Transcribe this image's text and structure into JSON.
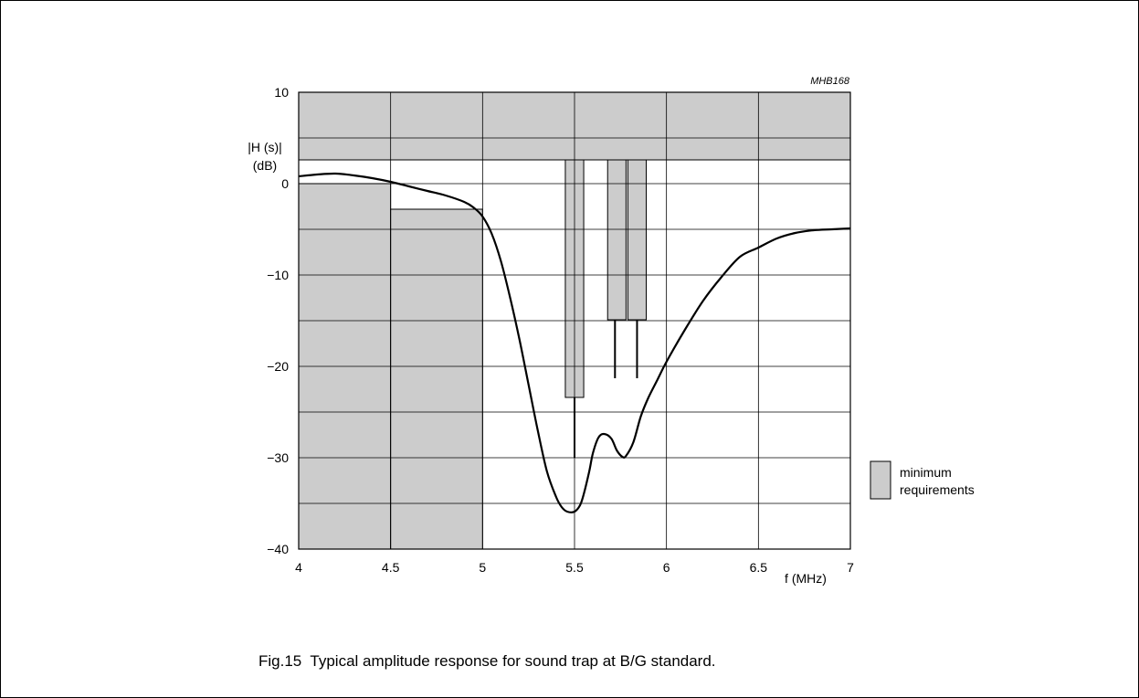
{
  "figure": {
    "reference_code": "MHB168",
    "caption": "Fig.15  Typical amplitude response for sound trap at B/G standard."
  },
  "chart_data": {
    "type": "line",
    "title": "",
    "xlabel": "f (MHz)",
    "ylabel_line1": "|H (s)|",
    "ylabel_line2": "(dB)",
    "xlim": [
      4,
      7
    ],
    "ylim": [
      -40,
      10
    ],
    "xticks": [
      4,
      4.5,
      5,
      5.5,
      6,
      6.5,
      7
    ],
    "xtick_labels": [
      "4",
      "4.5",
      "5",
      "5.5",
      "6",
      "6.5",
      "7"
    ],
    "yticks": [
      10,
      0,
      -10,
      -20,
      -30,
      -40
    ],
    "ytick_labels": [
      "10",
      "0",
      "−10",
      "−20",
      "−30",
      "−40"
    ],
    "grid": true,
    "series": [
      {
        "x": [
          4.0,
          4.1,
          4.2,
          4.3,
          4.4,
          4.5,
          4.6,
          4.7,
          4.8,
          4.9,
          4.95,
          5.0,
          5.05,
          5.1,
          5.15,
          5.2,
          5.25,
          5.3,
          5.35,
          5.4,
          5.43,
          5.46,
          5.5,
          5.53,
          5.55,
          5.58,
          5.6,
          5.63,
          5.66,
          5.7,
          5.73,
          5.76,
          5.78,
          5.82,
          5.86,
          5.9,
          5.95,
          6.0,
          6.1,
          6.2,
          6.3,
          6.4,
          6.5,
          6.6,
          6.7,
          6.8,
          6.9,
          7.0
        ],
        "y": [
          0.8,
          1.0,
          1.1,
          0.9,
          0.6,
          0.2,
          -0.3,
          -0.8,
          -1.3,
          -2.0,
          -2.6,
          -3.6,
          -5.5,
          -8.5,
          -12.5,
          -17.0,
          -22.0,
          -27.0,
          -31.5,
          -34.3,
          -35.4,
          -35.9,
          -35.9,
          -35.2,
          -34.0,
          -31.5,
          -29.5,
          -27.8,
          -27.4,
          -27.9,
          -29.2,
          -29.9,
          -29.8,
          -28.3,
          -25.5,
          -23.5,
          -21.5,
          -19.5,
          -16.0,
          -12.8,
          -10.2,
          -8.0,
          -7.0,
          -6.0,
          -5.4,
          -5.1,
          -5.0,
          -4.9
        ]
      }
    ],
    "shaded_regions": [
      {
        "x0": 4.0,
        "x1": 7.0,
        "y0": 2.6,
        "y1": 10
      },
      {
        "x0": 4.0,
        "x1": 4.5,
        "y0": -40,
        "y1": 0
      },
      {
        "x0": 4.5,
        "x1": 5.0,
        "y0": -40,
        "y1": -2.8
      },
      {
        "x0": 5.45,
        "x1": 5.55,
        "y0": -23.4,
        "y1": 2.6
      },
      {
        "x0": 5.68,
        "x1": 5.78,
        "y0": -14.9,
        "y1": 2.6
      },
      {
        "x0": 5.79,
        "x1": 5.89,
        "y0": -14.9,
        "y1": 2.6
      }
    ],
    "marker_lines": [
      {
        "x": 5.5,
        "y0": -30.0,
        "y1": -23.4
      },
      {
        "x": 5.72,
        "y0": -21.3,
        "y1": -14.9
      },
      {
        "x": 5.84,
        "y0": -21.3,
        "y1": -14.9
      }
    ],
    "legend": {
      "position": "right",
      "label_line1": "minimum",
      "label_line2": "requirements",
      "swatch_color": "#cccccc"
    },
    "colors": {
      "shade": "#cccccc",
      "curve": "#000000",
      "grid": "#000000"
    }
  }
}
